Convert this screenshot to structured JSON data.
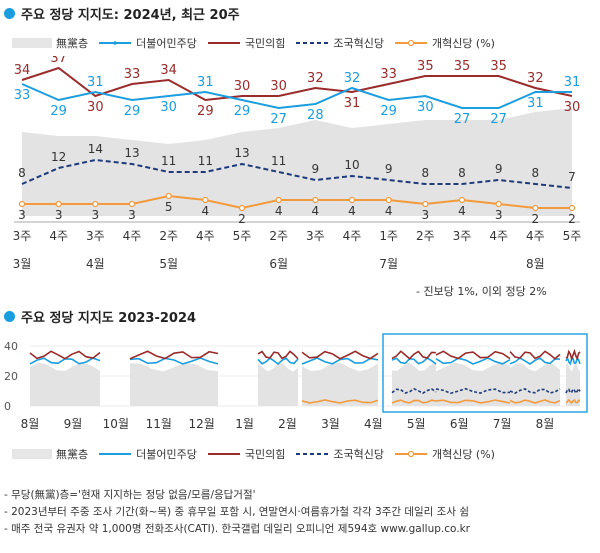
{
  "chart1": {
    "title": "주요 정당 지지도: 2024년, 최근 20주",
    "legend": [
      {
        "key": "none",
        "label": "無黨층"
      },
      {
        "key": "dem",
        "label": "더불어민주당"
      },
      {
        "key": "ppp",
        "label": "국민의힘"
      },
      {
        "key": "rebuild",
        "label": "조국혁신당"
      },
      {
        "key": "reform",
        "label": "개혁신당 (%)"
      }
    ],
    "note": "- 진보당 1%, 이외 정당 2%"
  },
  "chart2": {
    "title": "주요 정당 지지도 2023-2024",
    "legend": [
      {
        "key": "none",
        "label": "無黨층"
      },
      {
        "key": "dem",
        "label": "더불어민주당"
      },
      {
        "key": "ppp",
        "label": "국민의힘"
      },
      {
        "key": "rebuild",
        "label": "조국혁신당"
      },
      {
        "key": "reform",
        "label": "개혁신당 (%)"
      }
    ]
  },
  "colors": {
    "dem": "#1a9ee0",
    "ppp": "#9a2b2b",
    "rebuild": "#1f3a7a",
    "reform": "#f39a3c",
    "none": "#e3e3e3",
    "accent": "#1a9ee0"
  },
  "footnotes": [
    "- 무당(無黨)층='현재 지지하는 정당 없음/모름/응답거절'",
    "- 2023년부터 주중 조사 기간(화~목) 중 휴무일 포함 시, 연말연시·여름휴가철 각각 3주간 데일리 조사 쉼",
    "- 매주 전국 유권자 약 1,000명 전화조사(CATI). 한국갤럽 데일리 오피니언 제594호 www.gallup.co.kr"
  ],
  "chart_data": [
    {
      "type": "line",
      "title": "주요 정당 지지도: 2024년, 최근 20주",
      "categories": [
        "3주",
        "4주",
        "3주",
        "4주",
        "2주",
        "4주",
        "5주",
        "2주",
        "3주",
        "4주",
        "1주",
        "2주",
        "3주",
        "4주",
        "4주",
        "5주"
      ],
      "month_labels": [
        {
          "index": 0,
          "label": "3월"
        },
        {
          "index": 2,
          "label": "4월"
        },
        {
          "index": 4,
          "label": "5월"
        },
        {
          "index": 7,
          "label": "6월"
        },
        {
          "index": 10,
          "label": "7월"
        },
        {
          "index": 14,
          "label": "8월"
        }
      ],
      "series": [
        {
          "name": "더불어민주당",
          "key": "dem",
          "values": [
            33,
            29,
            31,
            29,
            30,
            31,
            29,
            27,
            28,
            32,
            29,
            30,
            27,
            27,
            31,
            31
          ]
        },
        {
          "name": "국민의힘",
          "key": "ppp",
          "values": [
            34,
            37,
            30,
            33,
            34,
            29,
            30,
            30,
            32,
            31,
            33,
            35,
            35,
            35,
            32,
            30
          ]
        },
        {
          "name": "조국혁신당",
          "key": "rebuild",
          "values": [
            8,
            12,
            14,
            13,
            11,
            11,
            13,
            11,
            9,
            10,
            9,
            8,
            8,
            9,
            8,
            7
          ]
        },
        {
          "name": "개혁신당",
          "key": "reform",
          "values": [
            3,
            3,
            3,
            3,
            5,
            4,
            2,
            4,
            4,
            4,
            4,
            3,
            4,
            3,
            2,
            2
          ]
        },
        {
          "name": "無黨층",
          "key": "none",
          "values": [
            21,
            20,
            20,
            19,
            18,
            19,
            21,
            22,
            24,
            22,
            23,
            24,
            24,
            24,
            26,
            27
          ]
        }
      ],
      "ylim": [
        0,
        40
      ]
    },
    {
      "type": "line",
      "title": "주요 정당 지지도 2023-2024",
      "yticks": [
        0,
        20,
        40
      ],
      "ylim": [
        0,
        40
      ],
      "x_labels": [
        "8월",
        "9월",
        "10월",
        "11월",
        "12월",
        "1월",
        "2월",
        "3월",
        "4월",
        "5월",
        "6월",
        "7월",
        "8월"
      ],
      "series_approx": [
        {
          "name": "더불어민주당",
          "key": "dem",
          "level": 30
        },
        {
          "name": "국민의힘",
          "key": "ppp",
          "level": 34
        },
        {
          "name": "조국혁신당",
          "key": "rebuild",
          "level": 10
        },
        {
          "name": "개혁신당",
          "key": "reform",
          "level": 3
        },
        {
          "name": "無黨층",
          "key": "none",
          "level": 26
        }
      ]
    }
  ]
}
